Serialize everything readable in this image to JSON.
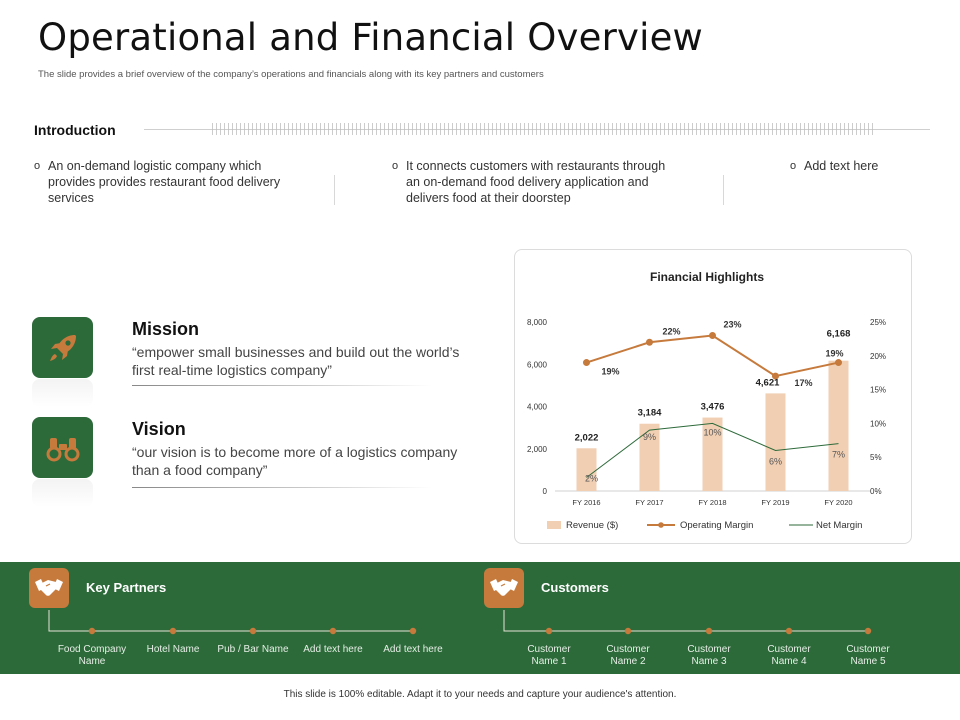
{
  "header": {
    "title": "Operational and Financial Overview",
    "subtitle": "The slide provides a brief overview of the company’s operations and financials along with its key partners and customers"
  },
  "introduction": {
    "label": "Introduction",
    "bullets": [
      "An on-demand logistic company which provides provides restaurant food delivery services",
      "It connects customers with restaurants through an on-demand food delivery application and delivers food at their doorstep",
      "Add text here"
    ],
    "bullet_glyph": "o"
  },
  "mission": {
    "title": "Mission",
    "text": "“empower small businesses and build out the world’s first real-time logistics company”"
  },
  "vision": {
    "title": "Vision",
    "text": "“our vision is to become more of a logistics company than a food company”"
  },
  "colors": {
    "green": "#2d6a3a",
    "orange": "#c67a3c",
    "bar": "#f1cfb3",
    "net_line": "#2d6a3a"
  },
  "chart_data": {
    "type": "bar",
    "title": "Financial Highlights",
    "categories": [
      "FY 2016",
      "FY 2017",
      "FY 2018",
      "FY 2019",
      "FY 2020"
    ],
    "left_ticks": [
      "0",
      "2,000",
      "4,000",
      "6,000",
      "8,000"
    ],
    "right_ticks": [
      "0%",
      "5%",
      "10%",
      "15%",
      "20%",
      "25%"
    ],
    "ylim": [
      0,
      8000
    ],
    "y2lim": [
      0,
      25
    ],
    "series": [
      {
        "name": "Revenue ($)",
        "kind": "bar",
        "values": [
          2022,
          3184,
          3476,
          4621,
          6168
        ],
        "labels": [
          "2,022",
          "3,184",
          "3,476",
          "4,621",
          "6,168"
        ]
      },
      {
        "name": "Operating Margin",
        "kind": "line",
        "axis": "right",
        "values": [
          19,
          22,
          23,
          17,
          19
        ],
        "labels": [
          "19%",
          "22%",
          "23%",
          "17%",
          "19%"
        ]
      },
      {
        "name": "Net Margin",
        "kind": "line",
        "axis": "right",
        "values": [
          2,
          9,
          10,
          6,
          7
        ],
        "labels": [
          "2%",
          "9%",
          "10%",
          "6%",
          "7%"
        ]
      }
    ],
    "legend": [
      "Revenue ($)",
      "Operating Margin",
      "Net Margin"
    ]
  },
  "partners": {
    "title": "Key Partners",
    "items": [
      "Food Company Name",
      "Hotel Name",
      "Pub / Bar Name",
      "Add text here",
      "Add text here"
    ]
  },
  "customers": {
    "title": "Customers",
    "items": [
      "Customer Name 1",
      "Customer Name 2",
      "Customer Name 3",
      "Customer Name 4",
      "Customer Name 5"
    ]
  },
  "footer": {
    "text": "This slide is 100% editable. Adapt it to your needs and capture your audience's attention."
  }
}
